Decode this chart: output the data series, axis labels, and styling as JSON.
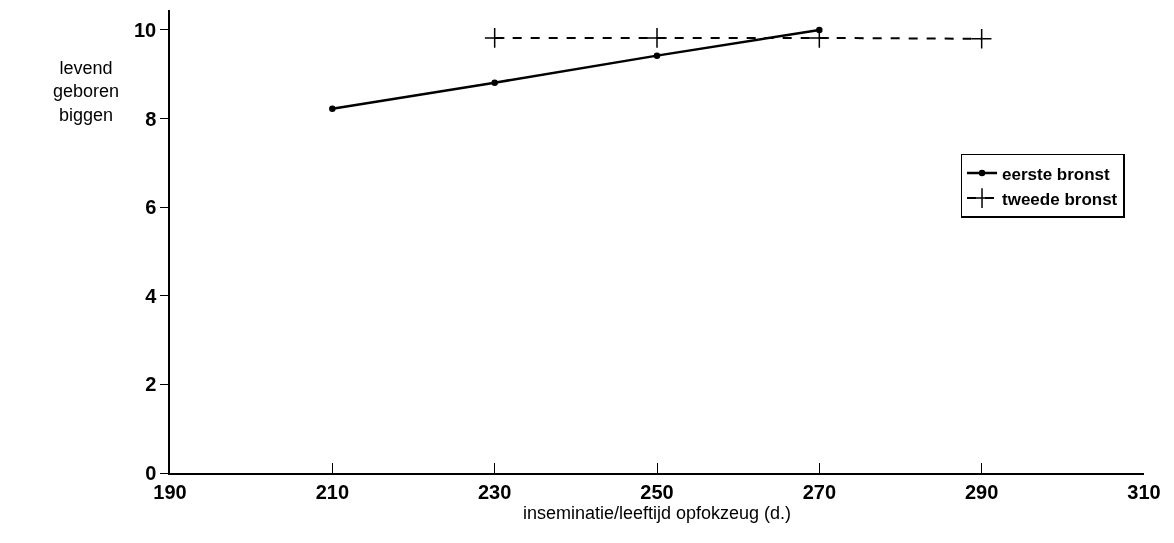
{
  "chart_data": {
    "type": "line",
    "xlabel": "inseminatie/leeftijd opfokzeug (d.)",
    "ylabel": "levend\ngeboren\nbiggen",
    "series": [
      {
        "name": "eerste bronst",
        "color": "#000000",
        "x": [
          210,
          230,
          250,
          270
        ],
        "values": [
          8.22,
          8.81,
          9.42,
          10.0
        ],
        "marker": "circle",
        "line_style": "solid"
      },
      {
        "name": "tweede bronst",
        "color": "#000000",
        "x": [
          230,
          250,
          270,
          290
        ],
        "values": [
          9.82,
          9.82,
          9.82,
          9.8
        ],
        "marker": "cross",
        "line_style": "dashed"
      }
    ],
    "xlim": [
      190,
      310
    ],
    "xticks": [
      190,
      210,
      230,
      250,
      270,
      290,
      310
    ],
    "ylim": [
      0,
      10.45
    ],
    "yticks": [
      0,
      2,
      4,
      6,
      8,
      10
    ],
    "legend": "right"
  }
}
